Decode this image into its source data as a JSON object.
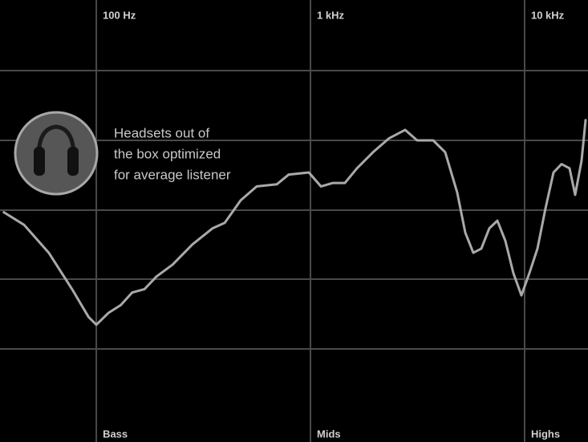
{
  "chart_data": {
    "type": "line",
    "log_x": true,
    "annotation": [
      "Headsets out of",
      "the box optimized",
      "for average listener"
    ],
    "band_labels": [
      "Bass",
      "Mids",
      "Highs"
    ],
    "x": [
      37,
      46,
      60,
      77,
      92,
      100,
      114,
      130,
      147,
      168,
      191,
      227,
      281,
      349,
      398,
      472,
      561,
      696,
      792,
      983,
      1119,
      1273,
      1449,
      1649,
      1960,
      2328,
      2767,
      3149,
      3741,
      4258,
      4846,
      5283,
      5758,
      6279,
      6843,
      7460,
      8130,
      8860,
      9660,
      10530,
      11480,
      12510,
      13640,
      14870,
      16210,
      17220,
      18450,
      19260
    ],
    "series": [
      {
        "color": "#a9a9a9",
        "values": [
          -0.3,
          -2.1,
          -6.1,
          -11.3,
          -15.3,
          -16.4,
          -14.7,
          -13.6,
          -11.8,
          -11.3,
          -9.5,
          -7.8,
          -4.9,
          -2.6,
          -1.8,
          1.4,
          3.4,
          3.7,
          5.1,
          5.4,
          3.4,
          3.9,
          3.9,
          6.0,
          8.3,
          10.3,
          11.5,
          10.0,
          10.0,
          8.3,
          2.5,
          -3.2,
          -6.1,
          -5.5,
          -2.6,
          -1.5,
          -4.4,
          -9.0,
          -12.2,
          -9.0,
          -5.5,
          0.2,
          5.4,
          6.6,
          6.0,
          2.2,
          7.1,
          12.9
        ]
      }
    ],
    "xlim": [
      35.5,
      19770
    ],
    "ylim": [
      -33.2,
      30.1
    ],
    "xticks": [
      {
        "value": 100,
        "label": "100 Hz"
      },
      {
        "value": 1000,
        "label": "1 kHz"
      },
      {
        "value": 10000,
        "label": "10 kHz"
      }
    ],
    "grid": true
  }
}
